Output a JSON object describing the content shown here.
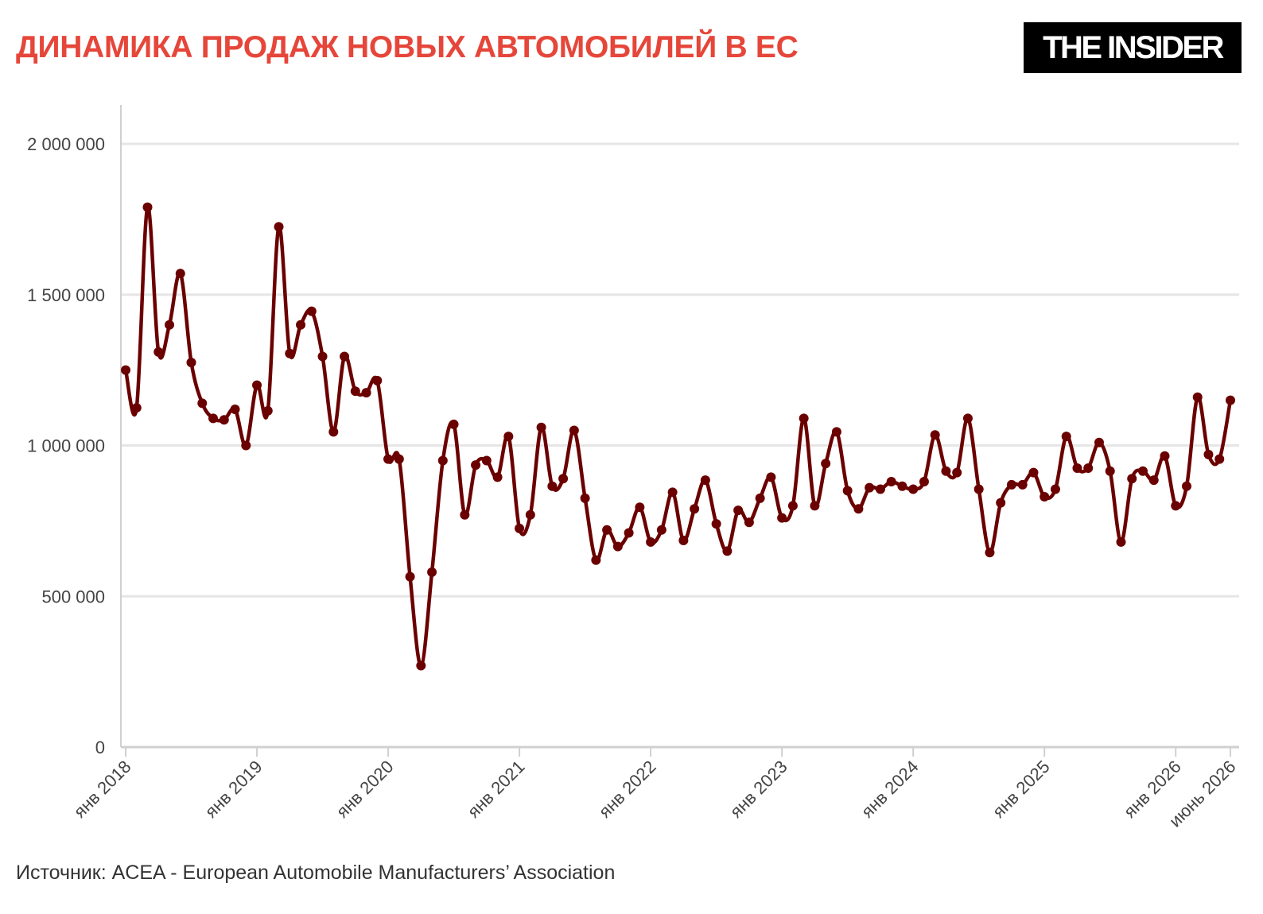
{
  "header": {
    "title": "ДИНАМИКА ПРОДАЖ НОВЫХ АВТОМОБИЛЕЙ В ЕС",
    "logo_text": "THE INSIDER"
  },
  "footer": {
    "source": "Источник: ACEA - European Automobile Manufacturers’ Association"
  },
  "colors": {
    "title": "#e6463a",
    "line": "#6b0000",
    "grid": "#e6e6e6",
    "axis": "#d0d0d0"
  },
  "chart_data": {
    "type": "line",
    "title": "ДИНАМИКА ПРОДАЖ НОВЫХ АВТОМОБИЛЕЙ В ЕС",
    "xlabel": "",
    "ylabel": "",
    "ylim": [
      0,
      2000000
    ],
    "grid": true,
    "legend": "none",
    "y_ticks": [
      {
        "value": 0,
        "label": "0"
      },
      {
        "value": 500000,
        "label": "500 000"
      },
      {
        "value": 1000000,
        "label": "1 000 000"
      },
      {
        "value": 1500000,
        "label": "1 500 000"
      },
      {
        "value": 2000000,
        "label": "2 000 000"
      }
    ],
    "x_ticks": [
      {
        "month_index": 0,
        "label": "янв 2018"
      },
      {
        "month_index": 12,
        "label": "янв 2019"
      },
      {
        "month_index": 24,
        "label": "янв 2020"
      },
      {
        "month_index": 36,
        "label": "янв 2021"
      },
      {
        "month_index": 48,
        "label": "янв 2022"
      },
      {
        "month_index": 60,
        "label": "янв 2023"
      },
      {
        "month_index": 72,
        "label": "янв 2024"
      },
      {
        "month_index": 84,
        "label": "янв 2025"
      },
      {
        "month_index": 96,
        "label": "янв 2026"
      },
      {
        "month_index": 101,
        "label": "июнь 2026"
      }
    ],
    "x_start": "янв 2018",
    "x_end": "июнь 2026",
    "series": [
      {
        "values": [
          1250000,
          1125000,
          1790000,
          1310000,
          1400000,
          1570000,
          1275000,
          1140000,
          1090000,
          1085000,
          1120000,
          1000000,
          1200000,
          1115000,
          1725000,
          1305000,
          1400000,
          1445000,
          1295000,
          1045000,
          1295000,
          1180000,
          1175000,
          1215000,
          955000,
          955000,
          565000,
          270000,
          580000,
          950000,
          1070000,
          770000,
          935000,
          950000,
          895000,
          1030000,
          725000,
          770000,
          1060000,
          865000,
          890000,
          1050000,
          825000,
          620000,
          720000,
          665000,
          710000,
          795000,
          680000,
          720000,
          845000,
          685000,
          790000,
          885000,
          740000,
          650000,
          785000,
          745000,
          825000,
          895000,
          760000,
          800000,
          1090000,
          800000,
          940000,
          1045000,
          850000,
          790000,
          860000,
          855000,
          880000,
          865000,
          855000,
          880000,
          1035000,
          915000,
          910000,
          1090000,
          855000,
          645000,
          810000,
          870000,
          870000,
          910000,
          830000,
          855000,
          1030000,
          925000,
          925000,
          1010000,
          915000,
          680000,
          890000,
          915000,
          885000,
          965000,
          800000,
          865000,
          1160000,
          970000,
          955000,
          1150000
        ]
      }
    ]
  }
}
